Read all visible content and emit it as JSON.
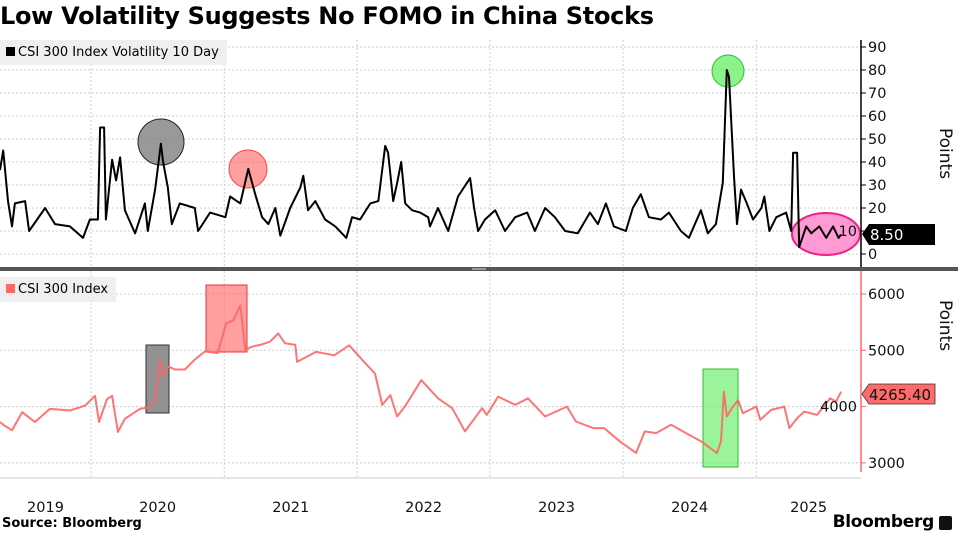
{
  "title": "Low Volatility Suggests No FOMO in China Stocks",
  "source": "Source: Bloomberg",
  "logo": "Bloomberg",
  "colors": {
    "volatility": "#000000",
    "index": "#ff6666",
    "gray_highlight": "#7f7f7f",
    "red_highlight": "#ff6b6b",
    "green_highlight": "#66ee66",
    "pink_highlight": "#ff88cc",
    "separator": "#555555"
  },
  "chart_data": [
    {
      "type": "line",
      "legend": "CSI 300 Index Volatility 10 Day",
      "ylabel": "Points",
      "yaxis_side": "right",
      "ylim": [
        -5,
        92
      ],
      "yticks": [
        0,
        10,
        20,
        30,
        40,
        50,
        60,
        70,
        80,
        90
      ],
      "last_value_label": "8.50",
      "grid": true,
      "legend_position": "top-left",
      "series": [
        {
          "name": "CSI 300 Index Volatility 10 Day",
          "color": "#000000",
          "points": [
            [
              "2019-04-26",
              36.5
            ],
            [
              "2019-05-05",
              45
            ],
            [
              "2019-05-18",
              23
            ],
            [
              "2019-05-29",
              12
            ],
            [
              "2019-06-06",
              22
            ],
            [
              "2019-07-04",
              23
            ],
            [
              "2019-07-15",
              10
            ],
            [
              "2019-08-28",
              20
            ],
            [
              "2019-09-24",
              13
            ],
            [
              "2019-11-04",
              12
            ],
            [
              "2019-12-10",
              7
            ],
            [
              "2019-12-29",
              15
            ],
            [
              "2020-01-20",
              15
            ],
            [
              "2020-01-26",
              55
            ],
            [
              "2020-02-06",
              55
            ],
            [
              "2020-02-11",
              15
            ],
            [
              "2020-02-28",
              41
            ],
            [
              "2020-03-10",
              32
            ],
            [
              "2020-03-21",
              42
            ],
            [
              "2020-04-03",
              19
            ],
            [
              "2020-05-01",
              9
            ],
            [
              "2020-05-28",
              22
            ],
            [
              "2020-06-05",
              10
            ],
            [
              "2020-06-25",
              28
            ],
            [
              "2020-07-11",
              48
            ],
            [
              "2020-07-17",
              40
            ],
            [
              "2020-07-30",
              29
            ],
            [
              "2020-08-10",
              13
            ],
            [
              "2020-09-01",
              22
            ],
            [
              "2020-10-12",
              20
            ],
            [
              "2020-10-21",
              10
            ],
            [
              "2020-11-23",
              18
            ],
            [
              "2021-01-04",
              16
            ],
            [
              "2021-01-17",
              25
            ],
            [
              "2021-02-14",
              22
            ],
            [
              "2021-03-08",
              37
            ],
            [
              "2021-03-27",
              26
            ],
            [
              "2021-04-15",
              16
            ],
            [
              "2021-05-02",
              13
            ],
            [
              "2021-05-21",
              20
            ],
            [
              "2021-06-04",
              8
            ],
            [
              "2021-07-01",
              20
            ],
            [
              "2021-07-29",
              29
            ],
            [
              "2021-08-06",
              34
            ],
            [
              "2021-08-19",
              19
            ],
            [
              "2021-09-08",
              23
            ],
            [
              "2021-10-05",
              15
            ],
            [
              "2021-11-02",
              12
            ],
            [
              "2021-12-02",
              7
            ],
            [
              "2021-12-18",
              16
            ],
            [
              "2022-01-09",
              15
            ],
            [
              "2022-02-06",
              22
            ],
            [
              "2022-02-28",
              23
            ],
            [
              "2022-03-19",
              47
            ],
            [
              "2022-03-27",
              44
            ],
            [
              "2022-04-10",
              23
            ],
            [
              "2022-04-21",
              31
            ],
            [
              "2022-05-02",
              40
            ],
            [
              "2022-05-13",
              22
            ],
            [
              "2022-06-01",
              19
            ],
            [
              "2022-06-23",
              18
            ],
            [
              "2022-07-15",
              16
            ],
            [
              "2022-07-20",
              12
            ],
            [
              "2022-08-11",
              20
            ],
            [
              "2022-09-08",
              10
            ],
            [
              "2022-10-05",
              25
            ],
            [
              "2022-11-07",
              33
            ],
            [
              "2022-11-18",
              20
            ],
            [
              "2022-11-29",
              10
            ],
            [
              "2022-12-18",
              15
            ],
            [
              "2023-01-15",
              19
            ],
            [
              "2023-02-11",
              10
            ],
            [
              "2023-03-11",
              16
            ],
            [
              "2023-04-13",
              18
            ],
            [
              "2023-05-04",
              10
            ],
            [
              "2023-06-01",
              20
            ],
            [
              "2023-06-28",
              16
            ],
            [
              "2023-07-26",
              10
            ],
            [
              "2023-08-30",
              9
            ],
            [
              "2023-10-02",
              18
            ],
            [
              "2023-10-24",
              13
            ],
            [
              "2023-11-15",
              22
            ],
            [
              "2023-12-07",
              12
            ],
            [
              "2024-01-09",
              10
            ],
            [
              "2024-01-28",
              20
            ],
            [
              "2024-02-19",
              26
            ],
            [
              "2024-03-12",
              16
            ],
            [
              "2024-04-14",
              15
            ],
            [
              "2024-05-06",
              18
            ],
            [
              "2024-06-08",
              10
            ],
            [
              "2024-06-30",
              7
            ],
            [
              "2024-08-02",
              19
            ],
            [
              "2024-08-21",
              9
            ],
            [
              "2024-09-12",
              13
            ],
            [
              "2024-10-01",
              31
            ],
            [
              "2024-10-12",
              80
            ],
            [
              "2024-10-18",
              77
            ],
            [
              "2024-11-01",
              33
            ],
            [
              "2024-11-09",
              13
            ],
            [
              "2024-11-20",
              28
            ],
            [
              "2024-12-06",
              22
            ],
            [
              "2024-12-23",
              15
            ],
            [
              "2025-01-15",
              20
            ],
            [
              "2025-01-23",
              25
            ],
            [
              "2025-02-06",
              10
            ],
            [
              "2025-02-25",
              16
            ],
            [
              "2025-03-24",
              18
            ],
            [
              "2025-04-07",
              10
            ],
            [
              "2025-04-12",
              44
            ],
            [
              "2025-04-23",
              44
            ],
            [
              "2025-04-29",
              3
            ],
            [
              "2025-05-18",
              12
            ],
            [
              "2025-06-01",
              9
            ],
            [
              "2025-06-23",
              12
            ],
            [
              "2025-07-12",
              7
            ],
            [
              "2025-07-31",
              12
            ],
            [
              "2025-08-15",
              7
            ],
            [
              "2025-08-22",
              8.5
            ]
          ]
        }
      ]
    },
    {
      "type": "line",
      "legend": "CSI 300 Index",
      "ylabel": "Points",
      "yaxis_side": "right",
      "ylim": [
        2850,
        6200
      ],
      "yticks": [
        3000,
        4000,
        5000,
        6000
      ],
      "last_value_label": "4265.40",
      "grid": true,
      "legend_position": "top-left",
      "xticks": [
        "2019",
        "2020",
        "2021",
        "2022",
        "2023",
        "2024",
        "2025"
      ],
      "series": [
        {
          "name": "CSI 300 Index",
          "color": "#ff6666",
          "points": [
            [
              "2019-04-26",
              3726
            ],
            [
              "2019-05-07",
              3668
            ],
            [
              "2019-05-29",
              3580
            ],
            [
              "2019-06-26",
              3901
            ],
            [
              "2019-07-31",
              3726
            ],
            [
              "2019-09-10",
              3959
            ],
            [
              "2019-11-04",
              3930
            ],
            [
              "2019-12-16",
              4017
            ],
            [
              "2020-01-12",
              4192
            ],
            [
              "2020-01-23",
              3726
            ],
            [
              "2020-02-14",
              4134
            ],
            [
              "2020-02-28",
              4192
            ],
            [
              "2020-03-15",
              3551
            ],
            [
              "2020-04-03",
              3784
            ],
            [
              "2020-05-14",
              3959
            ],
            [
              "2020-06-11",
              3988
            ],
            [
              "2020-06-25",
              4134
            ],
            [
              "2020-07-08",
              4834
            ],
            [
              "2020-07-17",
              4542
            ],
            [
              "2020-07-30",
              4717
            ],
            [
              "2020-08-18",
              4659
            ],
            [
              "2020-09-15",
              4659
            ],
            [
              "2020-10-12",
              4834
            ],
            [
              "2020-11-09",
              4980
            ],
            [
              "2020-12-14",
              4950
            ],
            [
              "2021-01-06",
              5475
            ],
            [
              "2021-01-26",
              5534
            ],
            [
              "2021-02-14",
              5796
            ],
            [
              "2021-02-28",
              5009
            ],
            [
              "2021-03-19",
              5067
            ],
            [
              "2021-04-10",
              5096
            ],
            [
              "2021-05-07",
              5155
            ],
            [
              "2021-05-29",
              5300
            ],
            [
              "2021-06-17",
              5125
            ],
            [
              "2021-07-15",
              5096
            ],
            [
              "2021-07-20",
              4794
            ],
            [
              "2021-09-10",
              4971
            ],
            [
              "2021-10-30",
              4912
            ],
            [
              "2021-12-10",
              5088
            ],
            [
              "2022-01-20",
              4794
            ],
            [
              "2022-02-19",
              4588
            ],
            [
              "2022-03-11",
              4030
            ],
            [
              "2022-04-02",
              4206
            ],
            [
              "2022-04-21",
              3824
            ],
            [
              "2022-05-15",
              4030
            ],
            [
              "2022-06-26",
              4471
            ],
            [
              "2022-08-11",
              4147
            ],
            [
              "2022-09-19",
              3971
            ],
            [
              "2022-10-24",
              3559
            ],
            [
              "2022-12-10",
              3971
            ],
            [
              "2022-12-23",
              3853
            ],
            [
              "2023-01-23",
              4177
            ],
            [
              "2023-03-11",
              4030
            ],
            [
              "2023-04-15",
              4147
            ],
            [
              "2023-06-01",
              3824
            ],
            [
              "2023-07-31",
              4000
            ],
            [
              "2023-08-25",
              3736
            ],
            [
              "2023-10-11",
              3618
            ],
            [
              "2023-11-10",
              3618
            ],
            [
              "2023-12-23",
              3383
            ],
            [
              "2024-02-06",
              3177
            ],
            [
              "2024-03-01",
              3559
            ],
            [
              "2024-04-01",
              3530
            ],
            [
              "2024-05-12",
              3677
            ],
            [
              "2024-06-22",
              3530
            ],
            [
              "2024-08-02",
              3383
            ],
            [
              "2024-09-15",
              3177
            ],
            [
              "2024-09-26",
              3383
            ],
            [
              "2024-10-04",
              4265
            ],
            [
              "2024-10-12",
              3824
            ],
            [
              "2024-10-26",
              3971
            ],
            [
              "2024-11-12",
              4118
            ],
            [
              "2024-11-25",
              3883
            ],
            [
              "2025-01-01",
              4000
            ],
            [
              "2025-01-12",
              3765
            ],
            [
              "2025-02-11",
              3941
            ],
            [
              "2025-03-19",
              4000
            ],
            [
              "2025-04-02",
              3618
            ],
            [
              "2025-04-23",
              3794
            ],
            [
              "2025-05-13",
              3912
            ],
            [
              "2025-06-17",
              3853
            ],
            [
              "2025-07-23",
              4147
            ],
            [
              "2025-08-08",
              4088
            ],
            [
              "2025-08-22",
              4265.4
            ]
          ]
        }
      ]
    }
  ]
}
